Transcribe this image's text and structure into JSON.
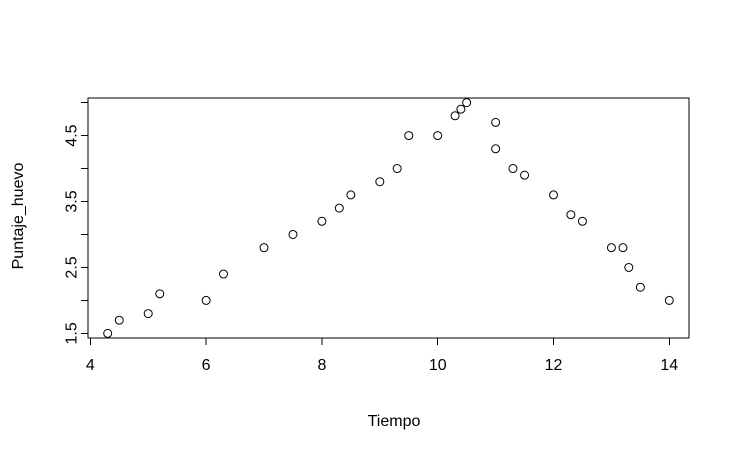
{
  "chart_data": {
    "type": "scatter",
    "title": "",
    "xlabel": "Tiempo",
    "ylabel": "Puntaje_huevo",
    "xlim": [
      3.96,
      14.34
    ],
    "ylim": [
      1.43,
      5.07
    ],
    "x_ticks": [
      4,
      6,
      8,
      10,
      12,
      14
    ],
    "x_tick_labels": [
      "4",
      "6",
      "8",
      "10",
      "12",
      "14"
    ],
    "y_ticks": [
      1.5,
      2.0,
      2.5,
      3.0,
      3.5,
      4.0,
      4.5,
      5.0
    ],
    "y_tick_labels": [
      "1.5",
      "",
      "2.5",
      "",
      "3.5",
      "",
      "4.5",
      ""
    ],
    "grid": false,
    "legend": "none",
    "marker": "open-circle",
    "point_color": "#000000",
    "points": [
      {
        "x": 4.3,
        "y": 1.5
      },
      {
        "x": 4.5,
        "y": 1.7
      },
      {
        "x": 5.0,
        "y": 1.8
      },
      {
        "x": 5.2,
        "y": 2.1
      },
      {
        "x": 6.0,
        "y": 2.0
      },
      {
        "x": 6.3,
        "y": 2.4
      },
      {
        "x": 7.0,
        "y": 2.8
      },
      {
        "x": 7.5,
        "y": 3.0
      },
      {
        "x": 8.0,
        "y": 3.2
      },
      {
        "x": 8.3,
        "y": 3.4
      },
      {
        "x": 8.5,
        "y": 3.6
      },
      {
        "x": 9.0,
        "y": 3.8
      },
      {
        "x": 9.3,
        "y": 4.0
      },
      {
        "x": 9.5,
        "y": 4.5
      },
      {
        "x": 10.0,
        "y": 4.5
      },
      {
        "x": 10.3,
        "y": 4.8
      },
      {
        "x": 10.4,
        "y": 4.9
      },
      {
        "x": 10.5,
        "y": 5.0
      },
      {
        "x": 11.0,
        "y": 4.7
      },
      {
        "x": 11.0,
        "y": 4.3
      },
      {
        "x": 11.3,
        "y": 4.0
      },
      {
        "x": 11.5,
        "y": 3.9
      },
      {
        "x": 12.0,
        "y": 3.6
      },
      {
        "x": 12.3,
        "y": 3.3
      },
      {
        "x": 12.5,
        "y": 3.2
      },
      {
        "x": 13.0,
        "y": 2.8
      },
      {
        "x": 13.2,
        "y": 2.8
      },
      {
        "x": 13.3,
        "y": 2.5
      },
      {
        "x": 13.5,
        "y": 2.2
      },
      {
        "x": 14.0,
        "y": 2.0
      }
    ]
  }
}
